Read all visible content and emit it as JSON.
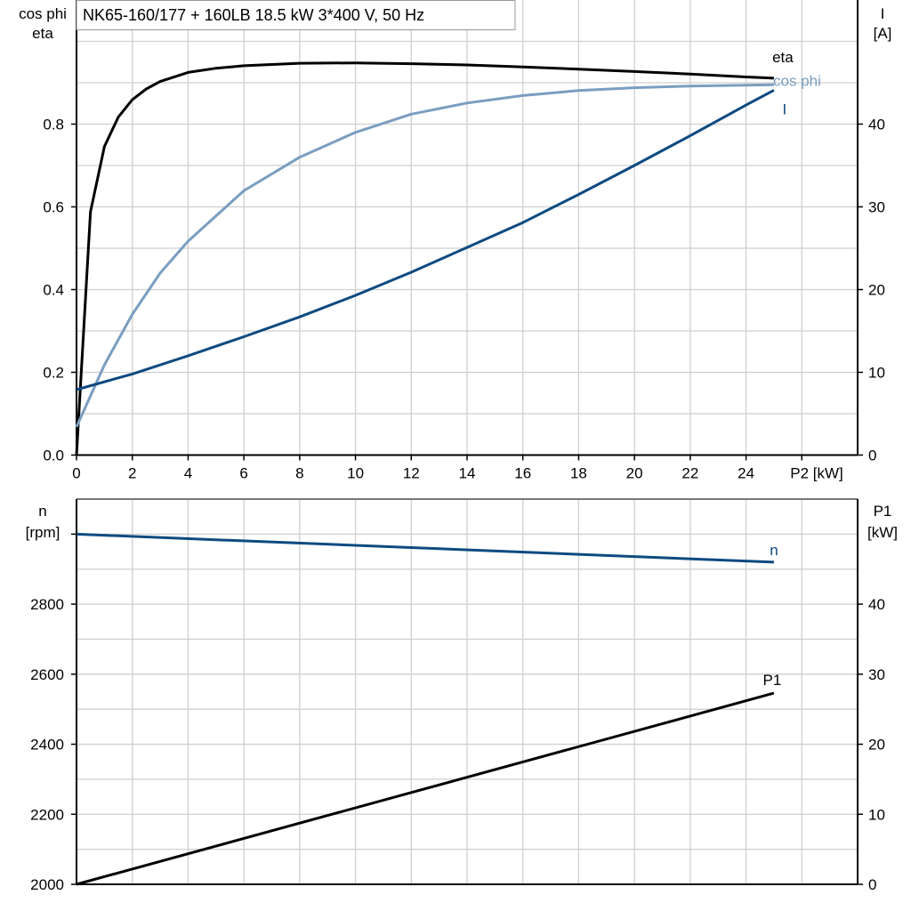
{
  "title": "NK65-160/177 + 160LB   18.5 kW   3*400 V, 50 Hz",
  "colors": {
    "eta": "#000000",
    "cos_phi": "#7a9ec0",
    "I": "#0e4a80",
    "n": "#0e4a80",
    "P1": "#000000",
    "grid": "#cfcfcf"
  },
  "chart_data": [
    {
      "type": "line",
      "xlabel": "P2 [kW]",
      "ylabel_left": [
        "cos phi",
        "eta"
      ],
      "ylabel_right": [
        "I",
        "[A]"
      ],
      "xlim": [
        0,
        28
      ],
      "ylim_left": [
        0,
        1.1
      ],
      "ylim_right": [
        0,
        55
      ],
      "grid": true,
      "x_ticks": [
        "0",
        "2",
        "4",
        "6",
        "8",
        "10",
        "12",
        "14",
        "16",
        "18",
        "20",
        "22",
        "24"
      ],
      "y_left_ticks": [
        "0.0",
        "0.2",
        "0.4",
        "0.6",
        "0.8"
      ],
      "y_right_ticks": [
        "0",
        "10",
        "20",
        "30",
        "40"
      ],
      "series": [
        {
          "name": "eta",
          "axis": "left",
          "x": [
            0,
            0.5,
            1,
            1.5,
            2,
            2.5,
            3,
            4,
            5,
            6,
            8,
            10,
            12,
            14,
            16,
            18,
            20,
            22,
            24,
            25
          ],
          "y": [
            0,
            0.588,
            0.746,
            0.817,
            0.859,
            0.885,
            0.903,
            0.925,
            0.935,
            0.941,
            0.947,
            0.948,
            0.946,
            0.943,
            0.938,
            0.933,
            0.927,
            0.921,
            0.914,
            0.911
          ]
        },
        {
          "name": "cos phi",
          "axis": "left",
          "x": [
            0,
            1,
            2,
            3,
            4,
            6,
            8,
            10,
            12,
            14,
            16,
            18,
            20,
            22,
            24,
            25
          ],
          "y": [
            0.068,
            0.218,
            0.34,
            0.44,
            0.517,
            0.639,
            0.72,
            0.78,
            0.824,
            0.851,
            0.869,
            0.881,
            0.888,
            0.892,
            0.894,
            0.895
          ]
        },
        {
          "name": "I",
          "axis": "right",
          "x": [
            0,
            2,
            4,
            6,
            8,
            10,
            12,
            14,
            16,
            18,
            20,
            22,
            24,
            25
          ],
          "y": [
            7.9,
            9.8,
            12.0,
            14.3,
            16.7,
            19.3,
            22.1,
            25.1,
            28.1,
            31.5,
            35.0,
            38.6,
            42.3,
            44.1
          ]
        }
      ]
    },
    {
      "type": "line",
      "xlim": [
        0,
        28
      ],
      "ylabel_left": [
        "n",
        "[rpm]"
      ],
      "ylabel_right": [
        "P1",
        "[kW]"
      ],
      "ylim_left": [
        2000,
        3100
      ],
      "ylim_right": [
        0,
        55
      ],
      "grid": true,
      "y_left_ticks": [
        "2000",
        "2200",
        "2400",
        "2600",
        "2800"
      ],
      "y_right_ticks": [
        "0",
        "10",
        "20",
        "30",
        "40"
      ],
      "series": [
        {
          "name": "n",
          "axis": "left",
          "x": [
            0,
            25
          ],
          "y": [
            3000,
            2920
          ]
        },
        {
          "name": "P1",
          "axis": "right",
          "x": [
            0,
            25
          ],
          "y": [
            0,
            27.3
          ]
        }
      ]
    }
  ]
}
